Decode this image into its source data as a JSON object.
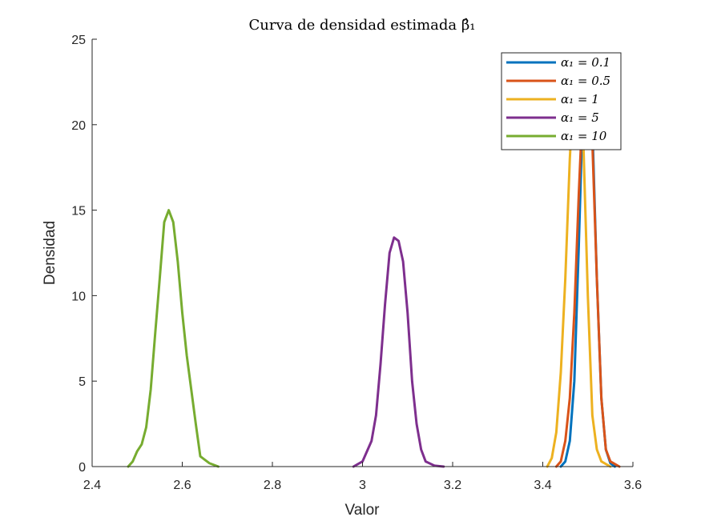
{
  "chart_data": {
    "type": "line",
    "title": "Curva de densidad estimada β̂₁",
    "xlabel": "Valor",
    "ylabel": "Densidad",
    "xlim": [
      2.4,
      3.6
    ],
    "ylim": [
      0,
      25
    ],
    "xticks": [
      "2.4",
      "2.6",
      "2.8",
      "3",
      "3.2",
      "3.4",
      "3.6"
    ],
    "yticks": [
      "0",
      "5",
      "10",
      "15",
      "20",
      "25"
    ],
    "grid": false,
    "legend_position": "top-right",
    "series": [
      {
        "name": "α₁ = 0.1",
        "color": "#0072BD",
        "x": [
          3.44,
          3.45,
          3.46,
          3.47,
          3.48,
          3.49,
          3.5,
          3.51,
          3.52,
          3.53,
          3.54,
          3.55,
          3.56
        ],
        "y": [
          0,
          0.3,
          1.5,
          5,
          13,
          22,
          24,
          20,
          11,
          4,
          1,
          0.2,
          0
        ]
      },
      {
        "name": "α₁ = 0.5",
        "color": "#D95319",
        "x": [
          3.43,
          3.44,
          3.45,
          3.46,
          3.47,
          3.48,
          3.49,
          3.5,
          3.51,
          3.52,
          3.53,
          3.54,
          3.55,
          3.57
        ],
        "y": [
          0,
          0.3,
          1.5,
          4,
          9,
          16,
          22,
          23,
          19,
          11,
          4,
          1,
          0.3,
          0
        ]
      },
      {
        "name": "α₁ = 1",
        "color": "#EDB120",
        "x": [
          3.41,
          3.42,
          3.43,
          3.44,
          3.45,
          3.46,
          3.47,
          3.48,
          3.49,
          3.5,
          3.51,
          3.52,
          3.53,
          3.55
        ],
        "y": [
          0,
          0.5,
          2,
          5.5,
          11,
          18,
          23,
          24,
          19,
          10,
          3,
          1,
          0.3,
          0
        ]
      },
      {
        "name": "α₁ = 5",
        "color": "#7E2F8E",
        "x": [
          2.98,
          3.0,
          3.02,
          3.03,
          3.04,
          3.05,
          3.06,
          3.07,
          3.08,
          3.09,
          3.1,
          3.11,
          3.12,
          3.13,
          3.14,
          3.16,
          3.18
        ],
        "y": [
          0,
          0.3,
          1.5,
          3,
          6,
          9.5,
          12.5,
          13.4,
          13.2,
          12,
          9,
          5,
          2.5,
          1,
          0.3,
          0.05,
          0
        ]
      },
      {
        "name": "α₁ = 10",
        "color": "#77AC30",
        "x": [
          2.48,
          2.49,
          2.5,
          2.51,
          2.52,
          2.53,
          2.54,
          2.55,
          2.56,
          2.57,
          2.58,
          2.59,
          2.6,
          2.61,
          2.62,
          2.63,
          2.64,
          2.66,
          2.68
        ],
        "y": [
          0,
          0.3,
          0.9,
          1.3,
          2.3,
          4.5,
          7.8,
          11,
          14.3,
          15,
          14.3,
          12,
          9,
          6.5,
          4.5,
          2.5,
          0.6,
          0.2,
          0
        ]
      }
    ]
  }
}
